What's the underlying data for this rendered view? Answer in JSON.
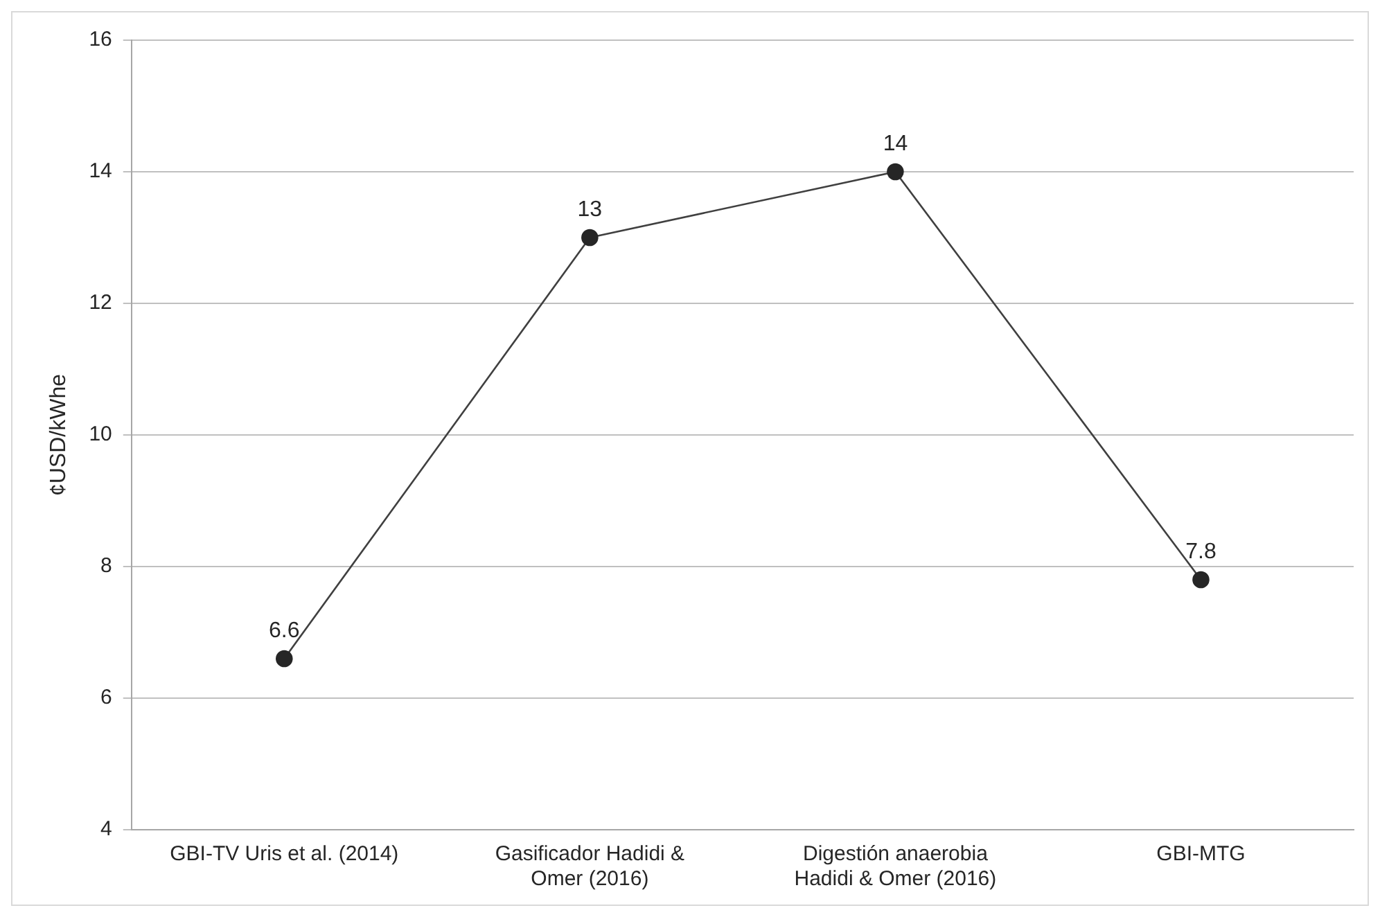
{
  "chart_data": {
    "type": "line",
    "ylabel": "¢USD/kWhe",
    "categories": [
      "GBI-TV Uris et al. (2014)",
      "Gasificador Hadidi & Omer (2016)",
      "Digestión anaerobia Hadidi & Omer (2016)",
      "GBI-MTG"
    ],
    "series": [
      {
        "color": "#404040",
        "values": [
          6.6,
          13,
          14,
          7.8
        ]
      }
    ],
    "ylim": [
      4,
      16
    ],
    "yticks": [
      4,
      6,
      8,
      10,
      12,
      14,
      16
    ],
    "grid": "y",
    "legend": false,
    "marker": "circle",
    "line_style": "solid",
    "data_labels": true
  }
}
